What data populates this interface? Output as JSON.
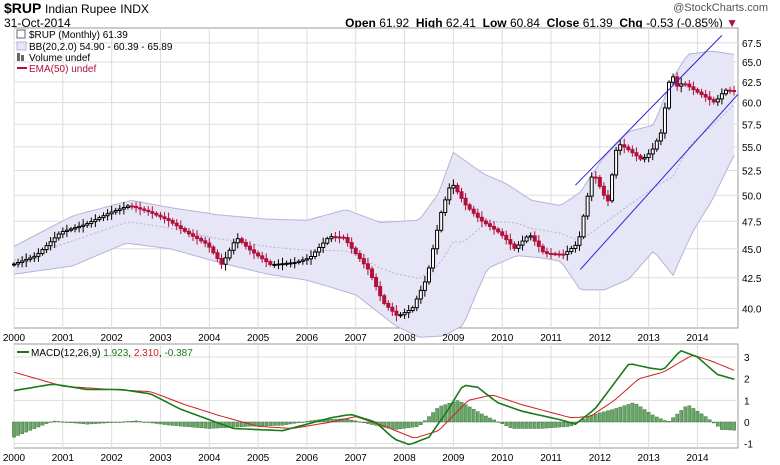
{
  "header": {
    "symbol": "$RUP",
    "name": "Indian Rupee",
    "exchange": "INDX",
    "date": "31-Oct-2014",
    "open_label": "Open",
    "open": "61.92",
    "high_label": "High",
    "high": "62.41",
    "low_label": "Low",
    "low": "60.84",
    "close_label": "Close",
    "close": "61.39",
    "chg_label": "Chg",
    "chg": "-0.53 (-0.85%)",
    "watermark": "@StockCharts.com"
  },
  "legend": {
    "price": "$RUP (Monthly) 61.39",
    "bb": "BB(20,2.0) 54.90 - 60.39 - 65.89",
    "volume": "Volume undef",
    "ema": "EMA(50) undef",
    "macd_label": "MACD(12,26,9)",
    "macd_v1": "1.923",
    "macd_v2": "2.310",
    "macd_v3": "-0.387"
  },
  "colors": {
    "up": "#000000",
    "down": "#b0103a",
    "bb_fill": "#e6e6f6",
    "bb_line": "#b4b4d8",
    "channel": "#2a2ad8",
    "macd": "#1a7a1a",
    "signal": "#cc2020",
    "hist": "#3a8a3a",
    "grid": "#dddddd"
  },
  "chart_data": [
    {
      "type": "line",
      "x_labels": [
        "2000",
        "2001",
        "2002",
        "2003",
        "2004",
        "2005",
        "2006",
        "2007",
        "2008",
        "2009",
        "2010",
        "2011",
        "2012",
        "2013",
        "2014"
      ],
      "x_range": [
        2000,
        2014.83
      ],
      "ylim": [
        38.5,
        69.5
      ],
      "y_ticks": [
        40.0,
        42.5,
        45.0,
        47.5,
        50.0,
        52.5,
        55.0,
        57.5,
        60.0,
        62.5,
        65.0,
        67.5
      ],
      "y_scale": "log",
      "grid": true,
      "price_anchors": [
        [
          2000.0,
          43.6
        ],
        [
          2000.5,
          44.4
        ],
        [
          2001.0,
          46.5
        ],
        [
          2001.5,
          47.2
        ],
        [
          2002.0,
          48.3
        ],
        [
          2002.4,
          49.0
        ],
        [
          2002.8,
          48.4
        ],
        [
          2003.2,
          47.6
        ],
        [
          2003.6,
          46.4
        ],
        [
          2004.0,
          45.4
        ],
        [
          2004.3,
          43.6
        ],
        [
          2004.6,
          46.0
        ],
        [
          2004.9,
          44.8
        ],
        [
          2005.3,
          43.6
        ],
        [
          2005.8,
          43.8
        ],
        [
          2006.1,
          44.2
        ],
        [
          2006.5,
          46.1
        ],
        [
          2006.8,
          46.0
        ],
        [
          2007.0,
          44.8
        ],
        [
          2007.3,
          43.2
        ],
        [
          2007.6,
          40.5
        ],
        [
          2007.9,
          39.4
        ],
        [
          2008.2,
          40.0
        ],
        [
          2008.5,
          42.5
        ],
        [
          2008.8,
          48.5
        ],
        [
          2009.0,
          51.3
        ],
        [
          2009.3,
          49.0
        ],
        [
          2009.6,
          47.6
        ],
        [
          2010.0,
          46.4
        ],
        [
          2010.3,
          45.0
        ],
        [
          2010.6,
          46.3
        ],
        [
          2010.9,
          44.6
        ],
        [
          2011.3,
          44.5
        ],
        [
          2011.6,
          45.5
        ],
        [
          2011.9,
          52.4
        ],
        [
          2012.2,
          49.2
        ],
        [
          2012.4,
          55.4
        ],
        [
          2012.6,
          54.8
        ],
        [
          2012.9,
          53.6
        ],
        [
          2013.1,
          54.5
        ],
        [
          2013.3,
          56.6
        ],
        [
          2013.5,
          64.0
        ],
        [
          2013.6,
          61.9
        ],
        [
          2013.75,
          62.4
        ],
        [
          2014.0,
          61.4
        ],
        [
          2014.4,
          60.0
        ],
        [
          2014.6,
          61.5
        ],
        [
          2014.83,
          61.39
        ]
      ],
      "bollinger_upper_anchors": [
        [
          2000.0,
          45.2
        ],
        [
          2001.2,
          48.0
        ],
        [
          2002.4,
          49.5
        ],
        [
          2003.2,
          48.8
        ],
        [
          2004.2,
          48.1
        ],
        [
          2005.2,
          47.7
        ],
        [
          2006.0,
          47.6
        ],
        [
          2006.8,
          48.6
        ],
        [
          2007.5,
          47.4
        ],
        [
          2008.3,
          47.6
        ],
        [
          2008.7,
          50.2
        ],
        [
          2009.0,
          54.4
        ],
        [
          2009.6,
          52.2
        ],
        [
          2010.1,
          51.1
        ],
        [
          2010.6,
          49.5
        ],
        [
          2011.2,
          49.0
        ],
        [
          2011.6,
          50.3
        ],
        [
          2012.1,
          54.0
        ],
        [
          2012.6,
          56.7
        ],
        [
          2013.1,
          57.4
        ],
        [
          2013.5,
          63.0
        ],
        [
          2013.8,
          66.0
        ],
        [
          2014.3,
          66.4
        ],
        [
          2014.83,
          65.89
        ]
      ],
      "bollinger_lower_anchors": [
        [
          2000.0,
          42.8
        ],
        [
          2001.2,
          43.5
        ],
        [
          2002.3,
          45.5
        ],
        [
          2003.2,
          45.0
        ],
        [
          2004.2,
          43.8
        ],
        [
          2005.2,
          42.8
        ],
        [
          2006.0,
          42.3
        ],
        [
          2007.0,
          41.1
        ],
        [
          2007.8,
          38.7
        ],
        [
          2008.3,
          37.8
        ],
        [
          2008.8,
          37.9
        ],
        [
          2009.2,
          38.7
        ],
        [
          2009.7,
          43.3
        ],
        [
          2010.3,
          44.4
        ],
        [
          2010.8,
          44.2
        ],
        [
          2011.2,
          43.9
        ],
        [
          2011.6,
          41.5
        ],
        [
          2012.1,
          41.5
        ],
        [
          2012.6,
          42.4
        ],
        [
          2013.1,
          44.8
        ],
        [
          2013.5,
          42.7
        ],
        [
          2013.9,
          46.5
        ],
        [
          2014.3,
          49.5
        ],
        [
          2014.83,
          54.9
        ]
      ],
      "channel_upper": [
        [
          2011.5,
          51.0
        ],
        [
          2014.5,
          68.5
        ]
      ],
      "channel_lower": [
        [
          2011.6,
          43.2
        ],
        [
          2014.83,
          61.0
        ]
      ]
    },
    {
      "type": "line",
      "ylim": [
        -1.2,
        3.6
      ],
      "y_ticks": [
        -1,
        0,
        1,
        2,
        3
      ],
      "macd_anchors": [
        [
          2000.0,
          1.45
        ],
        [
          2000.8,
          1.75
        ],
        [
          2001.5,
          1.5
        ],
        [
          2002.2,
          1.5
        ],
        [
          2002.8,
          1.3
        ],
        [
          2003.4,
          0.6
        ],
        [
          2004.0,
          0.1
        ],
        [
          2004.5,
          -0.3
        ],
        [
          2005.0,
          -0.35
        ],
        [
          2005.5,
          -0.4
        ],
        [
          2006.0,
          -0.1
        ],
        [
          2006.5,
          0.2
        ],
        [
          2006.9,
          0.35
        ],
        [
          2007.4,
          0.0
        ],
        [
          2007.8,
          -0.8
        ],
        [
          2008.1,
          -1.05
        ],
        [
          2008.5,
          -0.7
        ],
        [
          2008.9,
          0.6
        ],
        [
          2009.2,
          1.7
        ],
        [
          2009.5,
          1.6
        ],
        [
          2009.9,
          0.9
        ],
        [
          2010.4,
          0.5
        ],
        [
          2010.8,
          0.3
        ],
        [
          2011.2,
          0.1
        ],
        [
          2011.5,
          -0.1
        ],
        [
          2011.9,
          0.6
        ],
        [
          2012.2,
          1.5
        ],
        [
          2012.6,
          2.7
        ],
        [
          2013.0,
          2.5
        ],
        [
          2013.3,
          2.4
        ],
        [
          2013.65,
          3.3
        ],
        [
          2014.0,
          3.0
        ],
        [
          2014.4,
          2.2
        ],
        [
          2014.83,
          1.923
        ]
      ],
      "signal_anchors": [
        [
          2000.0,
          2.3
        ],
        [
          2001.0,
          1.65
        ],
        [
          2002.0,
          1.5
        ],
        [
          2002.8,
          1.4
        ],
        [
          2003.5,
          0.8
        ],
        [
          2004.2,
          0.3
        ],
        [
          2005.0,
          -0.2
        ],
        [
          2005.7,
          -0.3
        ],
        [
          2006.5,
          0.0
        ],
        [
          2007.0,
          0.25
        ],
        [
          2007.6,
          -0.2
        ],
        [
          2008.2,
          -0.75
        ],
        [
          2008.7,
          -0.4
        ],
        [
          2009.3,
          1.0
        ],
        [
          2009.8,
          1.25
        ],
        [
          2010.4,
          0.8
        ],
        [
          2010.9,
          0.5
        ],
        [
          2011.4,
          0.2
        ],
        [
          2011.8,
          0.25
        ],
        [
          2012.3,
          1.0
        ],
        [
          2012.8,
          2.0
        ],
        [
          2013.3,
          2.3
        ],
        [
          2013.9,
          3.1
        ],
        [
          2014.3,
          2.8
        ],
        [
          2014.83,
          2.31
        ]
      ],
      "histogram_anchors": [
        [
          2000.0,
          -0.7
        ],
        [
          2000.8,
          0.05
        ],
        [
          2001.5,
          -0.1
        ],
        [
          2002.5,
          0.05
        ],
        [
          2003.2,
          -0.15
        ],
        [
          2004.0,
          -0.3
        ],
        [
          2004.8,
          -0.2
        ],
        [
          2005.5,
          -0.15
        ],
        [
          2006.2,
          0.1
        ],
        [
          2006.8,
          0.15
        ],
        [
          2007.3,
          -0.1
        ],
        [
          2007.8,
          -0.35
        ],
        [
          2008.3,
          -0.2
        ],
        [
          2008.7,
          0.7
        ],
        [
          2009.1,
          1.0
        ],
        [
          2009.6,
          0.35
        ],
        [
          2010.2,
          -0.3
        ],
        [
          2010.8,
          -0.3
        ],
        [
          2011.4,
          -0.2
        ],
        [
          2011.8,
          0.3
        ],
        [
          2012.3,
          0.6
        ],
        [
          2012.7,
          0.9
        ],
        [
          2013.1,
          0.3
        ],
        [
          2013.4,
          0.0
        ],
        [
          2013.8,
          0.8
        ],
        [
          2014.2,
          0.2
        ],
        [
          2014.5,
          -0.35
        ],
        [
          2014.83,
          -0.387
        ]
      ]
    }
  ]
}
